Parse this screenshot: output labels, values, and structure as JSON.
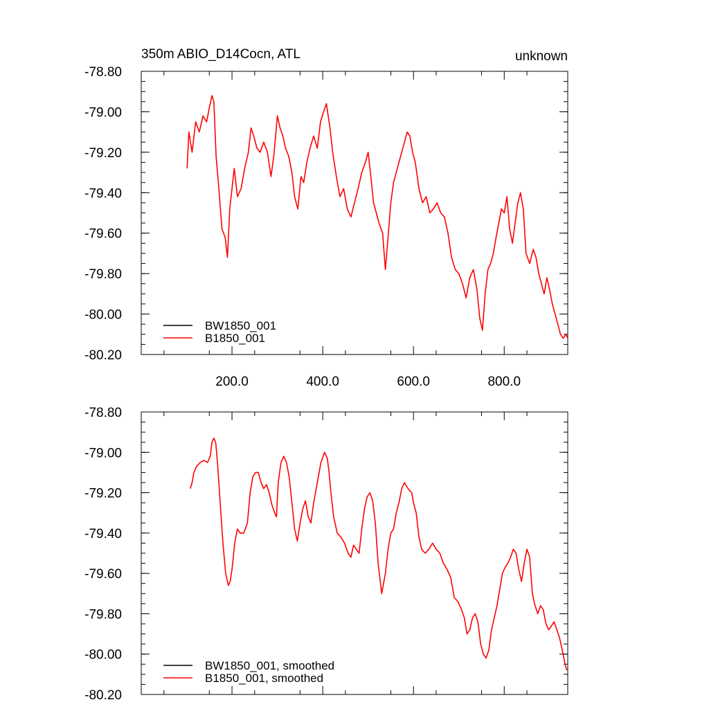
{
  "colors": {
    "background": "#ffffff",
    "axes": "#000000",
    "series_black": "#000000",
    "series_red": "#ff0000"
  },
  "header": {
    "title_left": "350m ABIO_D14Cocn, ATL",
    "title_right": "unknown"
  },
  "chart_data": [
    {
      "type": "line",
      "title": "350m ABIO_D14Cocn, ATL",
      "subtitle_right": "unknown",
      "xlim": [
        0,
        940
      ],
      "ylim": [
        -80.2,
        -78.8
      ],
      "xticks": [
        200,
        400,
        600,
        800
      ],
      "xtick_labels": [
        "200.0",
        "400.0",
        "600.0",
        "800.0"
      ],
      "yticks": [
        -78.8,
        -79.0,
        -79.2,
        -79.4,
        -79.6,
        -79.8,
        -80.0,
        -80.2
      ],
      "ytick_labels": [
        "-78.80",
        "-79.00",
        "-79.20",
        "-79.40",
        "-79.60",
        "-79.80",
        "-80.00",
        "-80.20"
      ],
      "grid": false,
      "legend_position": "bottom-left",
      "series": [
        {
          "name": "BW1850_001",
          "color": "#000000",
          "x": [],
          "y": []
        },
        {
          "name": "B1850_001",
          "color": "#ff0000",
          "x": [
            101,
            105,
            112,
            120,
            128,
            136,
            144,
            150,
            156,
            160,
            165,
            170,
            178,
            185,
            190,
            195,
            200,
            205,
            212,
            220,
            228,
            236,
            242,
            248,
            255,
            262,
            270,
            278,
            286,
            292,
            300,
            306,
            312,
            318,
            325,
            332,
            338,
            345,
            352,
            358,
            365,
            372,
            380,
            388,
            395,
            402,
            408,
            412,
            416,
            422,
            430,
            438,
            446,
            454,
            462,
            470,
            478,
            486,
            494,
            500,
            506,
            512,
            518,
            524,
            532,
            538,
            544,
            550,
            556,
            562,
            568,
            574,
            580,
            586,
            592,
            598,
            604,
            612,
            620,
            628,
            636,
            644,
            652,
            660,
            668,
            676,
            684,
            692,
            700,
            708,
            716,
            724,
            732,
            740,
            746,
            752,
            758,
            764,
            770,
            776,
            782,
            788,
            794,
            800,
            806,
            812,
            818,
            824,
            830,
            836,
            842,
            848,
            856,
            864,
            870,
            876,
            882,
            888,
            894,
            900,
            906,
            912,
            918,
            924,
            930,
            936,
            940
          ],
          "y": [
            -79.28,
            -79.1,
            -79.2,
            -79.05,
            -79.1,
            -79.02,
            -79.05,
            -78.98,
            -78.92,
            -78.95,
            -79.22,
            -79.35,
            -79.58,
            -79.62,
            -79.72,
            -79.48,
            -79.38,
            -79.28,
            -79.42,
            -79.38,
            -79.28,
            -79.2,
            -79.08,
            -79.12,
            -79.18,
            -79.2,
            -79.15,
            -79.2,
            -79.32,
            -79.22,
            -79.02,
            -79.08,
            -79.12,
            -79.18,
            -79.22,
            -79.3,
            -79.42,
            -79.48,
            -79.32,
            -79.35,
            -79.25,
            -79.18,
            -79.12,
            -79.18,
            -79.05,
            -79.0,
            -78.96,
            -79.02,
            -79.08,
            -79.2,
            -79.32,
            -79.42,
            -79.38,
            -79.48,
            -79.52,
            -79.45,
            -79.38,
            -79.3,
            -79.25,
            -79.2,
            -79.32,
            -79.45,
            -79.5,
            -79.55,
            -79.6,
            -79.78,
            -79.62,
            -79.45,
            -79.35,
            -79.3,
            -79.25,
            -79.2,
            -79.15,
            -79.1,
            -79.12,
            -79.2,
            -79.25,
            -79.38,
            -79.45,
            -79.42,
            -79.5,
            -79.48,
            -79.45,
            -79.5,
            -79.52,
            -79.6,
            -79.72,
            -79.78,
            -79.8,
            -79.85,
            -79.92,
            -79.82,
            -79.78,
            -79.88,
            -80.02,
            -80.08,
            -79.9,
            -79.78,
            -79.75,
            -79.7,
            -79.62,
            -79.55,
            -79.48,
            -79.5,
            -79.42,
            -79.58,
            -79.65,
            -79.55,
            -79.45,
            -79.4,
            -79.48,
            -79.7,
            -79.75,
            -79.68,
            -79.72,
            -79.8,
            -79.85,
            -79.9,
            -79.82,
            -79.88,
            -79.95,
            -80.0,
            -80.05,
            -80.1,
            -80.12,
            -80.1,
            -80.12
          ]
        }
      ]
    },
    {
      "type": "line",
      "title": "",
      "xlim": [
        0,
        940
      ],
      "ylim": [
        -80.2,
        -78.8
      ],
      "xticks": [
        200,
        400,
        600,
        800
      ],
      "xtick_labels": [],
      "yticks": [
        -78.8,
        -79.0,
        -79.2,
        -79.4,
        -79.6,
        -79.8,
        -80.0,
        -80.2
      ],
      "ytick_labels": [
        "-78.80",
        "-79.00",
        "-79.20",
        "-79.40",
        "-79.60",
        "-79.80",
        "-80.00",
        "-80.20"
      ],
      "grid": false,
      "legend_position": "bottom-left",
      "series": [
        {
          "name": "BW1850_001, smoothed",
          "color": "#000000",
          "x": [],
          "y": []
        },
        {
          "name": "B1850_001, smoothed",
          "color": "#ff0000",
          "x": [
            108,
            112,
            116,
            122,
            130,
            138,
            146,
            152,
            156,
            160,
            164,
            168,
            174,
            180,
            186,
            192,
            196,
            200,
            206,
            212,
            218,
            226,
            234,
            240,
            246,
            252,
            258,
            264,
            270,
            276,
            282,
            288,
            294,
            298,
            302,
            308,
            314,
            320,
            326,
            332,
            338,
            344,
            350,
            356,
            362,
            368,
            374,
            380,
            388,
            396,
            404,
            410,
            414,
            418,
            424,
            432,
            440,
            448,
            456,
            462,
            468,
            474,
            480,
            486,
            492,
            498,
            504,
            510,
            516,
            522,
            530,
            538,
            544,
            550,
            556,
            562,
            568,
            574,
            580,
            588,
            596,
            600,
            606,
            612,
            618,
            626,
            634,
            642,
            650,
            658,
            666,
            674,
            682,
            690,
            698,
            706,
            712,
            718,
            724,
            730,
            736,
            742,
            748,
            754,
            760,
            766,
            772,
            778,
            784,
            790,
            796,
            802,
            808,
            814,
            820,
            826,
            832,
            838,
            844,
            850,
            856,
            862,
            868,
            874,
            880,
            886,
            892,
            898,
            904,
            910,
            916,
            922,
            928,
            934,
            938
          ],
          "y": [
            -79.18,
            -79.15,
            -79.1,
            -79.07,
            -79.05,
            -79.04,
            -79.05,
            -79.02,
            -78.95,
            -78.93,
            -78.95,
            -79.05,
            -79.25,
            -79.45,
            -79.6,
            -79.66,
            -79.64,
            -79.58,
            -79.45,
            -79.38,
            -79.4,
            -79.4,
            -79.35,
            -79.2,
            -79.12,
            -79.1,
            -79.1,
            -79.15,
            -79.18,
            -79.16,
            -79.2,
            -79.26,
            -79.3,
            -79.32,
            -79.15,
            -79.05,
            -79.02,
            -79.05,
            -79.12,
            -79.25,
            -79.38,
            -79.44,
            -79.35,
            -79.28,
            -79.24,
            -79.32,
            -79.35,
            -79.25,
            -79.15,
            -79.05,
            -79.0,
            -79.03,
            -79.1,
            -79.2,
            -79.32,
            -79.4,
            -79.42,
            -79.45,
            -79.5,
            -79.52,
            -79.46,
            -79.48,
            -79.5,
            -79.38,
            -79.28,
            -79.22,
            -79.2,
            -79.24,
            -79.35,
            -79.55,
            -79.7,
            -79.6,
            -79.48,
            -79.4,
            -79.38,
            -79.3,
            -79.25,
            -79.18,
            -79.15,
            -79.18,
            -79.2,
            -79.25,
            -79.3,
            -79.42,
            -79.48,
            -79.5,
            -79.48,
            -79.45,
            -79.48,
            -79.5,
            -79.55,
            -79.58,
            -79.62,
            -79.72,
            -79.74,
            -79.78,
            -79.82,
            -79.9,
            -79.88,
            -79.82,
            -79.8,
            -79.84,
            -79.95,
            -80.0,
            -80.02,
            -79.98,
            -79.88,
            -79.82,
            -79.76,
            -79.68,
            -79.6,
            -79.57,
            -79.55,
            -79.52,
            -79.48,
            -79.5,
            -79.58,
            -79.64,
            -79.55,
            -79.48,
            -79.52,
            -79.7,
            -79.76,
            -79.8,
            -79.76,
            -79.78,
            -79.85,
            -79.88,
            -79.86,
            -79.84,
            -79.88,
            -79.92,
            -79.98,
            -80.05,
            -80.08
          ]
        }
      ]
    }
  ]
}
